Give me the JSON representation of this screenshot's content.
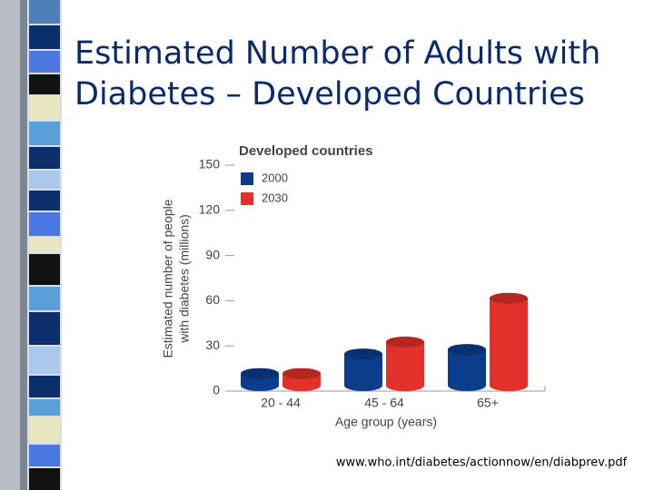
{
  "slide_title": [
    "Estimated Number of Adults with",
    "Diabetes – Developed Countries"
  ],
  "source": "www.who.int/diabetes/actionnow/en/diabprev.pdf",
  "chart_data": {
    "type": "bar",
    "title": "Developed countries",
    "ylabel": [
      "Estimated number of people",
      "with diabetes (millions)"
    ],
    "xlabel": "Age group (years)",
    "categories": [
      "20 - 44",
      "45 - 64",
      "65+"
    ],
    "series": [
      {
        "name": "2000",
        "color": "#0c3c8c",
        "values": [
          8,
          21,
          24
        ]
      },
      {
        "name": "2030",
        "color": "#e3302a",
        "values": [
          8,
          29,
          58
        ]
      }
    ],
    "ylim": [
      0,
      150
    ],
    "yticks": [
      0,
      30,
      60,
      90,
      120,
      150
    ]
  }
}
